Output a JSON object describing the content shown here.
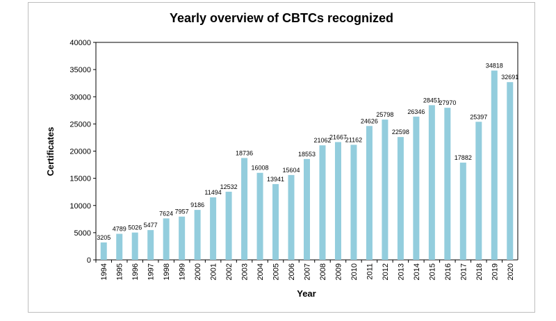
{
  "chart_data": {
    "type": "bar",
    "title": "Yearly overview of CBTCs recognized",
    "xlabel": "Year",
    "ylabel": "Certificates",
    "ylim": [
      0,
      40000
    ],
    "yticks": [
      "0",
      "5000",
      "10000",
      "15000",
      "20000",
      "25000",
      "30000",
      "35000",
      "40000"
    ],
    "grid": false,
    "legend": "none",
    "bar_color": "#93cddd",
    "categories": [
      "1994",
      "1995",
      "1996",
      "1997",
      "1998",
      "1999",
      "2000",
      "2001",
      "2002",
      "2003",
      "2004",
      "2005",
      "2006",
      "2007",
      "2008",
      "2009",
      "2010",
      "2011",
      "2012",
      "2013",
      "2014",
      "2015",
      "2016",
      "2017",
      "2018",
      "2019",
      "2020"
    ],
    "values": [
      3205,
      4789,
      5026,
      5477,
      7624,
      7957,
      9186,
      11494,
      12532,
      18736,
      16008,
      13941,
      15604,
      18553,
      21062,
      21667,
      21162,
      24626,
      25798,
      22598,
      26346,
      28451,
      27970,
      17882,
      25397,
      34818,
      32691
    ]
  }
}
